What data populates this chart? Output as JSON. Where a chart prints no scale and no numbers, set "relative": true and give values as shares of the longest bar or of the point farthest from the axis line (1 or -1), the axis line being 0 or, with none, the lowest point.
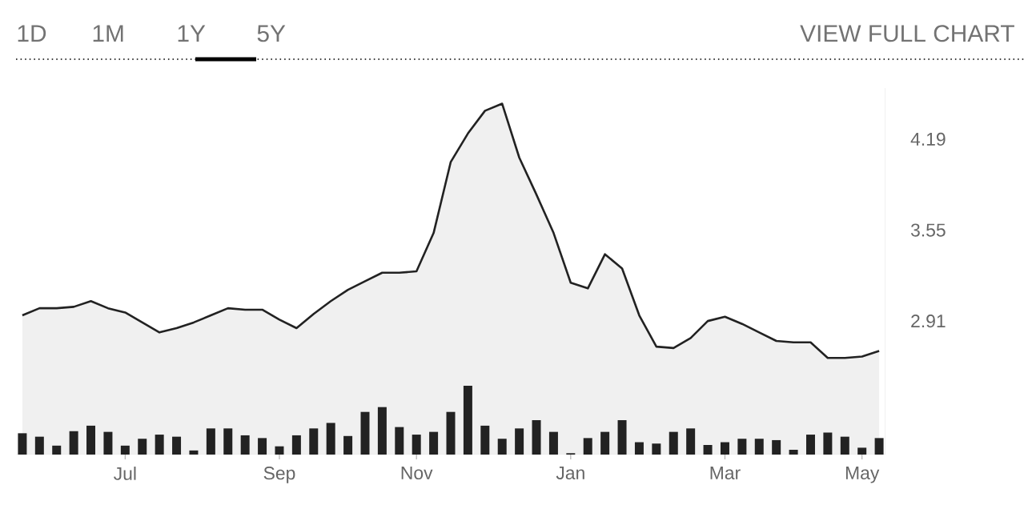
{
  "chart_data": [
    {
      "type": "area",
      "annotations": [
        "1D",
        "1M",
        "1Y",
        "5Y",
        "VIEW FULL CHART"
      ],
      "categories": [
        null,
        null,
        null,
        null,
        null,
        null,
        "Jul",
        null,
        null,
        null,
        null,
        null,
        null,
        null,
        null,
        "Sep",
        null,
        null,
        null,
        null,
        null,
        null,
        null,
        "Nov",
        null,
        null,
        null,
        null,
        null,
        null,
        null,
        null,
        "Jan",
        null,
        null,
        null,
        null,
        null,
        null,
        null,
        null,
        "Mar",
        null,
        null,
        null,
        null,
        null,
        null,
        null,
        "May",
        null
      ],
      "series": [
        {
          "color": "#f0f0f0",
          "values": [
            2.95,
            3.0,
            3.0,
            3.01,
            3.05,
            3.0,
            2.97,
            2.9,
            2.83,
            2.86,
            2.9,
            2.95,
            3.0,
            2.99,
            2.99,
            2.92,
            2.86,
            2.96,
            3.05,
            3.13,
            3.19,
            3.25,
            3.25,
            3.26,
            3.53,
            4.03,
            4.23,
            4.39,
            4.44,
            4.06,
            3.8,
            3.53,
            3.18,
            3.14,
            3.38,
            3.28,
            2.95,
            2.73,
            2.72,
            2.79,
            2.91,
            2.94,
            2.89,
            2.83,
            2.77,
            2.76,
            2.76,
            2.65,
            2.65,
            2.66,
            2.7
          ]
        }
      ],
      "ylim": [
        1.97,
        4.55
      ],
      "yticks": [
        2.91,
        3.55,
        4.19
      ]
    },
    {
      "type": "bar",
      "relative": true,
      "color": "#222222",
      "categories": [
        null,
        null,
        null,
        null,
        null,
        null,
        null,
        null,
        null,
        null,
        null,
        null,
        null,
        null,
        null,
        null,
        null,
        null,
        null,
        null,
        null,
        null,
        null,
        null,
        null,
        null,
        null,
        null,
        null,
        null,
        null,
        null,
        null,
        null,
        null,
        null,
        null,
        null,
        null,
        null,
        null,
        null,
        null,
        null,
        null,
        null,
        null,
        null,
        null,
        null,
        null
      ],
      "values": [
        0.31,
        0.26,
        0.13,
        0.34,
        0.42,
        0.33,
        0.13,
        0.23,
        0.29,
        0.26,
        0.06,
        0.38,
        0.38,
        0.28,
        0.24,
        0.12,
        0.28,
        0.38,
        0.46,
        0.27,
        0.62,
        0.69,
        0.4,
        0.29,
        0.33,
        0.62,
        1,
        0.42,
        0.23,
        0.38,
        0.5,
        0.33,
        0.02,
        0.24,
        0.33,
        0.5,
        0.18,
        0.16,
        0.33,
        0.38,
        0.14,
        0.18,
        0.23,
        0.23,
        0.21,
        0.07,
        0.29,
        0.32,
        0.26,
        0.1,
        0.24
      ]
    }
  ]
}
